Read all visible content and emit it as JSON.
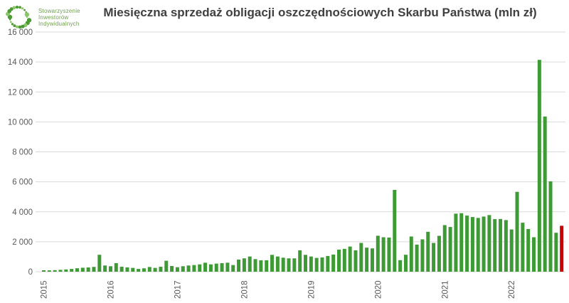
{
  "header": {
    "logo": {
      "line1": "Stowarzyszenie",
      "line2": "Inwestorów",
      "line3": "Indywidualnych"
    },
    "title": "Miesięczna sprzedaż obligacji oszczędnościowych Skarbu Państwa (mln zł)"
  },
  "colors": {
    "bar_green": "#3d9a35",
    "bar_red": "#c80000",
    "grid": "#d9d9d9",
    "axis_text": "#595959",
    "title_text": "#404040",
    "logo_green": "#6fa24c",
    "logo_dot_dark": "#4c9a33",
    "logo_dot_light": "#8cc66b"
  },
  "chart_data": {
    "type": "bar",
    "title": "Miesięczna sprzedaż obligacji oszczędnościowych Skarbu Państwa (mln zł)",
    "unit": "mln zł",
    "xlabel": "",
    "ylabel": "",
    "ylim": [
      0,
      16000
    ],
    "grid": "horizontal",
    "legend": "none",
    "start_month": "2015-01",
    "end_month": "2022-10",
    "x_tick_labels": [
      "2015",
      "2016",
      "2017",
      "2018",
      "2019",
      "2020",
      "2021",
      "2022"
    ],
    "y_ticks": [
      0,
      2000,
      4000,
      6000,
      8000,
      10000,
      12000,
      14000,
      16000
    ],
    "y_tick_labels": [
      "0",
      "2 000",
      "4 000",
      "6 000",
      "8 000",
      "10 000",
      "12 000",
      "14 000",
      "16 000"
    ],
    "highlight": "last bar drawn in red (most recent month)",
    "series": [
      {
        "name": "Sprzedaż miesięczna (mln zł)",
        "values_by_year": {
          "2015": [
            95,
            90,
            105,
            125,
            150,
            185,
            230,
            265,
            285,
            320,
            1130,
            415
          ],
          "2016": [
            365,
            570,
            330,
            290,
            255,
            185,
            225,
            315,
            255,
            330,
            730,
            380
          ],
          "2017": [
            300,
            365,
            415,
            445,
            490,
            600,
            490,
            540,
            570,
            600,
            445,
            810
          ],
          "2018": [
            890,
            1015,
            840,
            760,
            765,
            1125,
            1015,
            935,
            890,
            890,
            1430,
            1125
          ],
          "2019": [
            1015,
            920,
            950,
            1050,
            1145,
            1475,
            1525,
            1680,
            1430,
            1920,
            1605,
            1555
          ],
          "2020": [
            2400,
            2300,
            2280,
            5460,
            770,
            1130,
            2350,
            1810,
            2160,
            2665,
            1920,
            2395
          ],
          "2021": [
            3110,
            2985,
            3875,
            3905,
            3745,
            3650,
            3590,
            3680,
            3780,
            3510,
            3520,
            3445
          ],
          "2022": [
            2820,
            5330,
            3270,
            2850,
            2300,
            14140,
            10360,
            6030,
            2600,
            3065
          ]
        }
      }
    ]
  }
}
